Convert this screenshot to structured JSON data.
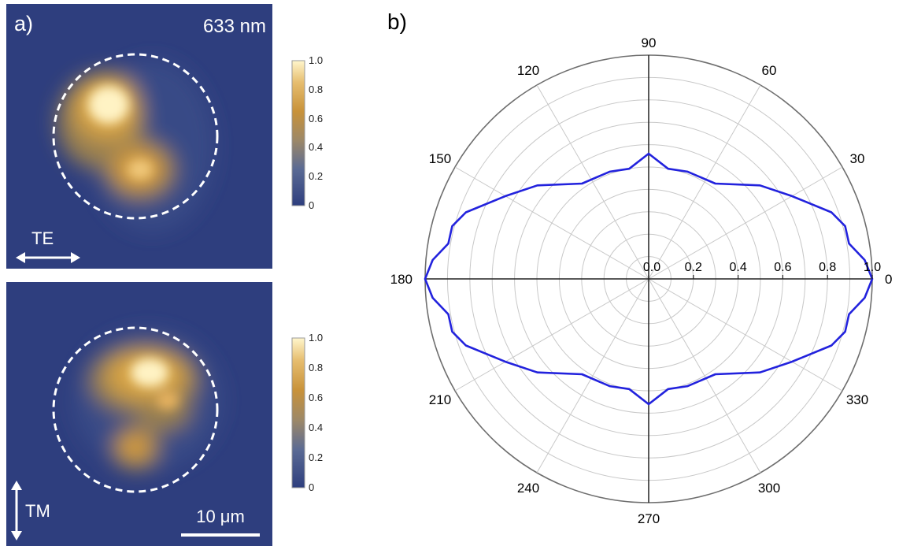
{
  "panel_a": {
    "label": "a)",
    "wavelength": "633 nm",
    "top_polarization": "TE",
    "bottom_polarization": "TM",
    "scale_bar": "10 μm",
    "colorbar_ticks": [
      "1.0",
      "0.8",
      "0.6",
      "0.4",
      "0.2",
      "0"
    ],
    "colors": {
      "background": "#2e3e7e",
      "bright": "#fff6cc",
      "mid": "#c8923a"
    }
  },
  "chart_data": {
    "type": "polar",
    "label": "b)",
    "angle_labels": [
      "0",
      "30",
      "60",
      "90",
      "120",
      "150",
      "180",
      "210",
      "240",
      "270",
      "300",
      "330"
    ],
    "radial_tick_labels": [
      "0.0",
      "0.2",
      "0.4",
      "0.6",
      "0.8",
      "1.0"
    ],
    "rlim": [
      0,
      1.0
    ],
    "grid": true,
    "series": [
      {
        "color": "#2222dd",
        "points": [
          [
            0,
            1.0
          ],
          [
            5,
            0.97
          ],
          [
            10,
            0.91
          ],
          [
            15,
            0.91
          ],
          [
            20,
            0.87
          ],
          [
            30,
            0.74
          ],
          [
            40,
            0.65
          ],
          [
            55,
            0.52
          ],
          [
            70,
            0.51
          ],
          [
            80,
            0.5
          ],
          [
            90,
            0.56
          ],
          [
            100,
            0.5
          ],
          [
            110,
            0.51
          ],
          [
            125,
            0.52
          ],
          [
            140,
            0.65
          ],
          [
            150,
            0.74
          ],
          [
            160,
            0.87
          ],
          [
            165,
            0.91
          ],
          [
            170,
            0.91
          ],
          [
            175,
            0.97
          ],
          [
            180,
            1.0
          ],
          [
            185,
            0.97
          ],
          [
            190,
            0.91
          ],
          [
            195,
            0.91
          ],
          [
            200,
            0.87
          ],
          [
            210,
            0.74
          ],
          [
            220,
            0.65
          ],
          [
            235,
            0.52
          ],
          [
            250,
            0.51
          ],
          [
            260,
            0.5
          ],
          [
            270,
            0.56
          ],
          [
            280,
            0.5
          ],
          [
            290,
            0.51
          ],
          [
            305,
            0.52
          ],
          [
            320,
            0.65
          ],
          [
            330,
            0.74
          ],
          [
            340,
            0.87
          ],
          [
            345,
            0.91
          ],
          [
            350,
            0.91
          ],
          [
            355,
            0.97
          ]
        ]
      }
    ]
  }
}
